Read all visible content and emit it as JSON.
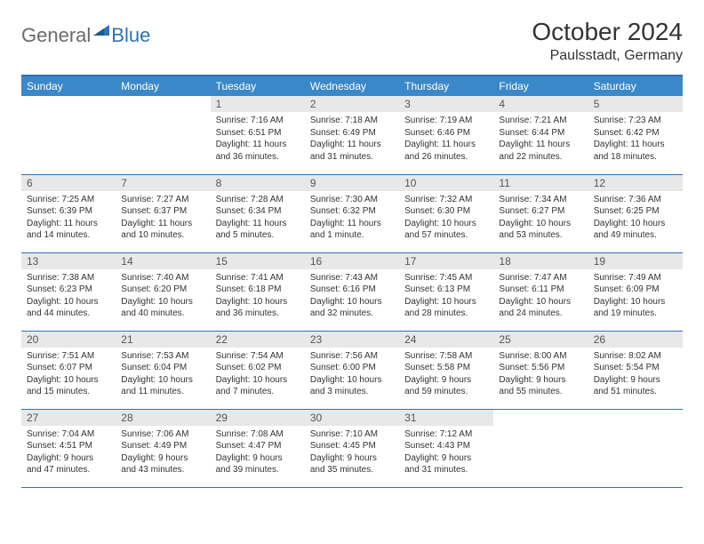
{
  "logo": {
    "general": "General",
    "blue": "Blue"
  },
  "title": "October 2024",
  "location": "Paulsstadt, Germany",
  "colors": {
    "header_bg": "#3b88c8",
    "border": "#2f72b6",
    "daynum_bg": "#e8e8e8",
    "text": "#333333",
    "logo_gray": "#6b6b6b",
    "logo_blue": "#2f72b6"
  },
  "days_of_week": [
    "Sunday",
    "Monday",
    "Tuesday",
    "Wednesday",
    "Thursday",
    "Friday",
    "Saturday"
  ],
  "weeks": [
    [
      null,
      null,
      {
        "n": "1",
        "sr": "7:16 AM",
        "ss": "6:51 PM",
        "dl": "11 hours and 36 minutes."
      },
      {
        "n": "2",
        "sr": "7:18 AM",
        "ss": "6:49 PM",
        "dl": "11 hours and 31 minutes."
      },
      {
        "n": "3",
        "sr": "7:19 AM",
        "ss": "6:46 PM",
        "dl": "11 hours and 26 minutes."
      },
      {
        "n": "4",
        "sr": "7:21 AM",
        "ss": "6:44 PM",
        "dl": "11 hours and 22 minutes."
      },
      {
        "n": "5",
        "sr": "7:23 AM",
        "ss": "6:42 PM",
        "dl": "11 hours and 18 minutes."
      }
    ],
    [
      {
        "n": "6",
        "sr": "7:25 AM",
        "ss": "6:39 PM",
        "dl": "11 hours and 14 minutes."
      },
      {
        "n": "7",
        "sr": "7:27 AM",
        "ss": "6:37 PM",
        "dl": "11 hours and 10 minutes."
      },
      {
        "n": "8",
        "sr": "7:28 AM",
        "ss": "6:34 PM",
        "dl": "11 hours and 5 minutes."
      },
      {
        "n": "9",
        "sr": "7:30 AM",
        "ss": "6:32 PM",
        "dl": "11 hours and 1 minute."
      },
      {
        "n": "10",
        "sr": "7:32 AM",
        "ss": "6:30 PM",
        "dl": "10 hours and 57 minutes."
      },
      {
        "n": "11",
        "sr": "7:34 AM",
        "ss": "6:27 PM",
        "dl": "10 hours and 53 minutes."
      },
      {
        "n": "12",
        "sr": "7:36 AM",
        "ss": "6:25 PM",
        "dl": "10 hours and 49 minutes."
      }
    ],
    [
      {
        "n": "13",
        "sr": "7:38 AM",
        "ss": "6:23 PM",
        "dl": "10 hours and 44 minutes."
      },
      {
        "n": "14",
        "sr": "7:40 AM",
        "ss": "6:20 PM",
        "dl": "10 hours and 40 minutes."
      },
      {
        "n": "15",
        "sr": "7:41 AM",
        "ss": "6:18 PM",
        "dl": "10 hours and 36 minutes."
      },
      {
        "n": "16",
        "sr": "7:43 AM",
        "ss": "6:16 PM",
        "dl": "10 hours and 32 minutes."
      },
      {
        "n": "17",
        "sr": "7:45 AM",
        "ss": "6:13 PM",
        "dl": "10 hours and 28 minutes."
      },
      {
        "n": "18",
        "sr": "7:47 AM",
        "ss": "6:11 PM",
        "dl": "10 hours and 24 minutes."
      },
      {
        "n": "19",
        "sr": "7:49 AM",
        "ss": "6:09 PM",
        "dl": "10 hours and 19 minutes."
      }
    ],
    [
      {
        "n": "20",
        "sr": "7:51 AM",
        "ss": "6:07 PM",
        "dl": "10 hours and 15 minutes."
      },
      {
        "n": "21",
        "sr": "7:53 AM",
        "ss": "6:04 PM",
        "dl": "10 hours and 11 minutes."
      },
      {
        "n": "22",
        "sr": "7:54 AM",
        "ss": "6:02 PM",
        "dl": "10 hours and 7 minutes."
      },
      {
        "n": "23",
        "sr": "7:56 AM",
        "ss": "6:00 PM",
        "dl": "10 hours and 3 minutes."
      },
      {
        "n": "24",
        "sr": "7:58 AM",
        "ss": "5:58 PM",
        "dl": "9 hours and 59 minutes."
      },
      {
        "n": "25",
        "sr": "8:00 AM",
        "ss": "5:56 PM",
        "dl": "9 hours and 55 minutes."
      },
      {
        "n": "26",
        "sr": "8:02 AM",
        "ss": "5:54 PM",
        "dl": "9 hours and 51 minutes."
      }
    ],
    [
      {
        "n": "27",
        "sr": "7:04 AM",
        "ss": "4:51 PM",
        "dl": "9 hours and 47 minutes."
      },
      {
        "n": "28",
        "sr": "7:06 AM",
        "ss": "4:49 PM",
        "dl": "9 hours and 43 minutes."
      },
      {
        "n": "29",
        "sr": "7:08 AM",
        "ss": "4:47 PM",
        "dl": "9 hours and 39 minutes."
      },
      {
        "n": "30",
        "sr": "7:10 AM",
        "ss": "4:45 PM",
        "dl": "9 hours and 35 minutes."
      },
      {
        "n": "31",
        "sr": "7:12 AM",
        "ss": "4:43 PM",
        "dl": "9 hours and 31 minutes."
      },
      null,
      null
    ]
  ],
  "labels": {
    "sunrise": "Sunrise: ",
    "sunset": "Sunset: ",
    "daylight": "Daylight: "
  }
}
